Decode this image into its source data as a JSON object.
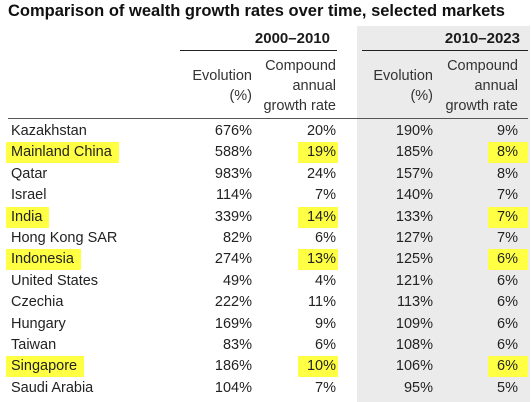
{
  "title": "Comparison of wealth growth rates over time, selected markets",
  "periods": [
    "2000–2010",
    "2010–2023"
  ],
  "headers": {
    "evolution": [
      "Evolution",
      "(%)"
    ],
    "cagr": [
      "Compound",
      "annual",
      "growth rate"
    ]
  },
  "colors": {
    "highlight": "#ffff44",
    "shaded_column": "#ebebeb"
  },
  "chart_data": {
    "type": "table",
    "title": "Comparison of wealth growth rates over time, selected markets",
    "columns": [
      "2000–2010 Evolution (%)",
      "2000–2010 Compound annual growth rate",
      "2010–2023 Evolution (%)",
      "2010–2023 Compound annual growth rate"
    ],
    "rows": [
      {
        "country": "Kazakhstan",
        "evo1": "676%",
        "cagr1": "20%",
        "evo2": "190%",
        "cagr2": "9%",
        "highlight": false
      },
      {
        "country": "Mainland China",
        "evo1": "588%",
        "cagr1": "19%",
        "evo2": "185%",
        "cagr2": "8%",
        "highlight": true
      },
      {
        "country": "Qatar",
        "evo1": "983%",
        "cagr1": "24%",
        "evo2": "157%",
        "cagr2": "8%",
        "highlight": false
      },
      {
        "country": "Israel",
        "evo1": "114%",
        "cagr1": "7%",
        "evo2": "140%",
        "cagr2": "7%",
        "highlight": false
      },
      {
        "country": "India",
        "evo1": "339%",
        "cagr1": "14%",
        "evo2": "133%",
        "cagr2": "7%",
        "highlight": true
      },
      {
        "country": "Hong Kong SAR",
        "evo1": "82%",
        "cagr1": "6%",
        "evo2": "127%",
        "cagr2": "7%",
        "highlight": false
      },
      {
        "country": "Indonesia",
        "evo1": "274%",
        "cagr1": "13%",
        "evo2": "125%",
        "cagr2": "6%",
        "highlight": true
      },
      {
        "country": "United States",
        "evo1": "49%",
        "cagr1": "4%",
        "evo2": "121%",
        "cagr2": "6%",
        "highlight": false
      },
      {
        "country": "Czechia",
        "evo1": "222%",
        "cagr1": "11%",
        "evo2": "113%",
        "cagr2": "6%",
        "highlight": false
      },
      {
        "country": "Hungary",
        "evo1": "169%",
        "cagr1": "9%",
        "evo2": "109%",
        "cagr2": "6%",
        "highlight": false
      },
      {
        "country": "Taiwan",
        "evo1": "83%",
        "cagr1": "6%",
        "evo2": "108%",
        "cagr2": "6%",
        "highlight": false
      },
      {
        "country": "Singapore",
        "evo1": "186%",
        "cagr1": "10%",
        "evo2": "106%",
        "cagr2": "6%",
        "highlight": true
      },
      {
        "country": "Saudi Arabia",
        "evo1": "104%",
        "cagr1": "7%",
        "evo2": "95%",
        "cagr2": "5%",
        "highlight": false
      }
    ]
  }
}
